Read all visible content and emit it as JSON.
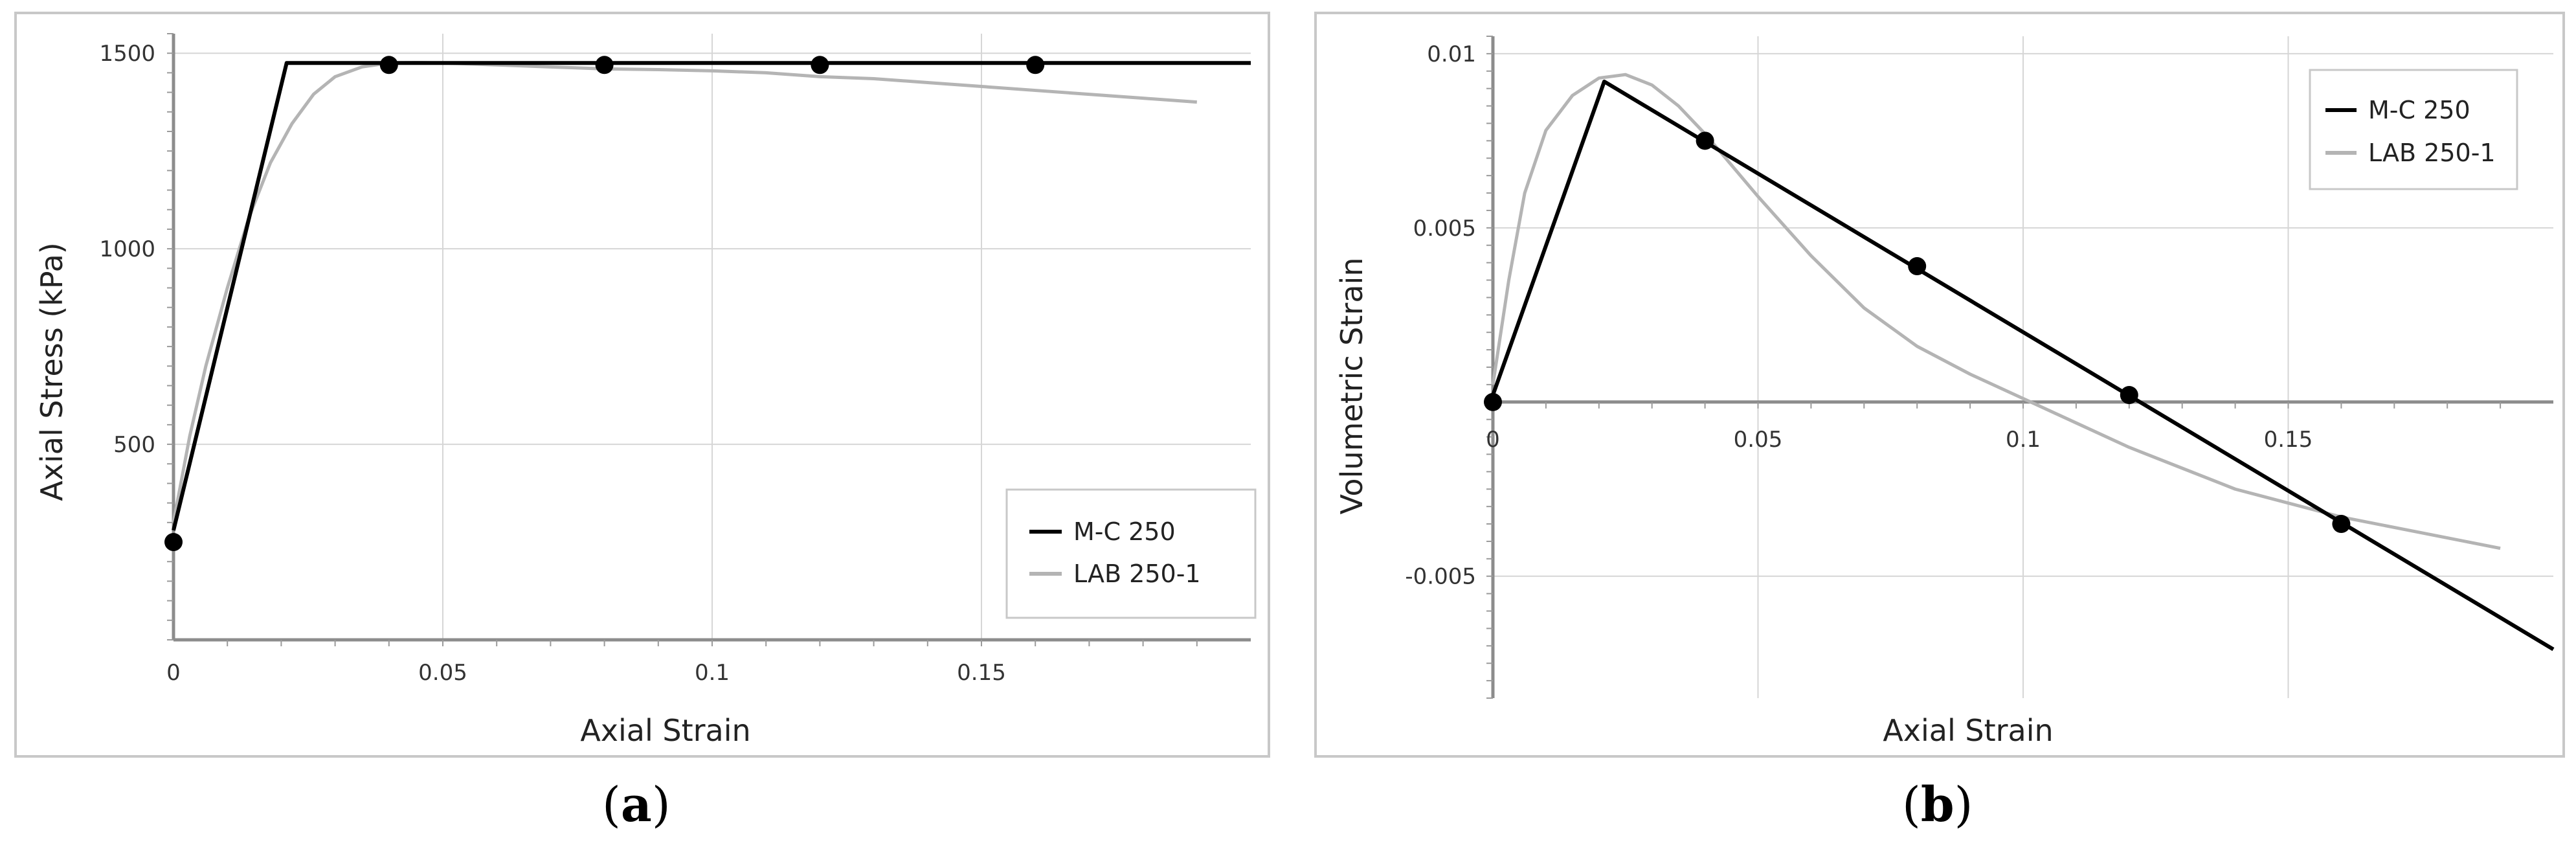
{
  "chart_data": [
    {
      "type": "line",
      "panel_label": "a",
      "xlabel": "Axial Strain",
      "ylabel": "Axial Stress (kPa)",
      "xlim": [
        0,
        0.2
      ],
      "ylim": [
        0,
        1550
      ],
      "x_ticks": [
        0,
        0.05,
        0.1,
        0.15
      ],
      "x_tick_labels": [
        "0",
        "0.05",
        "0.1",
        "0.15"
      ],
      "y_ticks": [
        500,
        1000,
        1500
      ],
      "y_tick_labels": [
        "500",
        "1000",
        "1500"
      ],
      "grid": true,
      "legend_position": "bottom-right",
      "series": [
        {
          "name": "M-C 250",
          "color": "#000000",
          "x": [
            0,
            0.021,
            0.2
          ],
          "y": [
            280,
            1475,
            1475
          ],
          "markers_x": [
            0,
            0.04,
            0.08,
            0.12,
            0.16
          ],
          "markers_y": [
            250,
            1470,
            1470,
            1470,
            1470
          ]
        },
        {
          "name": "LAB 250-1",
          "color": "#b4b4b4",
          "x": [
            0,
            0.003,
            0.006,
            0.01,
            0.014,
            0.018,
            0.022,
            0.026,
            0.03,
            0.035,
            0.04,
            0.045,
            0.05,
            0.06,
            0.07,
            0.08,
            0.09,
            0.1,
            0.11,
            0.12,
            0.13,
            0.14,
            0.15,
            0.16,
            0.17,
            0.18,
            0.19
          ],
          "y": [
            300,
            520,
            700,
            900,
            1080,
            1220,
            1320,
            1395,
            1440,
            1465,
            1475,
            1476,
            1475,
            1470,
            1465,
            1460,
            1458,
            1455,
            1450,
            1440,
            1435,
            1425,
            1415,
            1405,
            1395,
            1385,
            1375
          ]
        }
      ]
    },
    {
      "type": "line",
      "panel_label": "b",
      "xlabel": "Axial Strain",
      "ylabel": "Volumetric Strain",
      "xlim": [
        0,
        0.2
      ],
      "ylim": [
        -0.0085,
        0.0105
      ],
      "x_ticks": [
        0,
        0.05,
        0.1,
        0.15
      ],
      "x_tick_labels": [
        "0",
        "0.05",
        "0.1",
        "0.15"
      ],
      "y_ticks": [
        -0.005,
        0.005,
        0.01
      ],
      "y_tick_labels": [
        "-0.005",
        "0.005",
        "0.01"
      ],
      "grid": true,
      "legend_position": "top-right",
      "series": [
        {
          "name": "M-C 250",
          "color": "#000000",
          "x": [
            0,
            0.021,
            0.2
          ],
          "y": [
            0.0002,
            0.0092,
            -0.0071
          ],
          "markers_x": [
            0,
            0.04,
            0.08,
            0.12,
            0.16
          ],
          "markers_y": [
            0,
            0.0075,
            0.0039,
            0.0002,
            -0.0035
          ]
        },
        {
          "name": "LAB 250-1",
          "color": "#b4b4b4",
          "x": [
            0,
            0.003,
            0.006,
            0.01,
            0.015,
            0.02,
            0.025,
            0.03,
            0.035,
            0.04,
            0.045,
            0.05,
            0.06,
            0.07,
            0.08,
            0.09,
            0.1,
            0.11,
            0.12,
            0.13,
            0.14,
            0.15,
            0.16,
            0.17,
            0.18,
            0.19
          ],
          "y": [
            0.0005,
            0.0035,
            0.006,
            0.0078,
            0.0088,
            0.0093,
            0.0094,
            0.0091,
            0.0085,
            0.0077,
            0.0068,
            0.0059,
            0.0042,
            0.0027,
            0.0016,
            0.0008,
            0.0001,
            -0.0006,
            -0.0013,
            -0.0019,
            -0.0025,
            -0.0029,
            -0.0033,
            -0.0036,
            -0.0039,
            -0.0042
          ]
        }
      ]
    }
  ]
}
